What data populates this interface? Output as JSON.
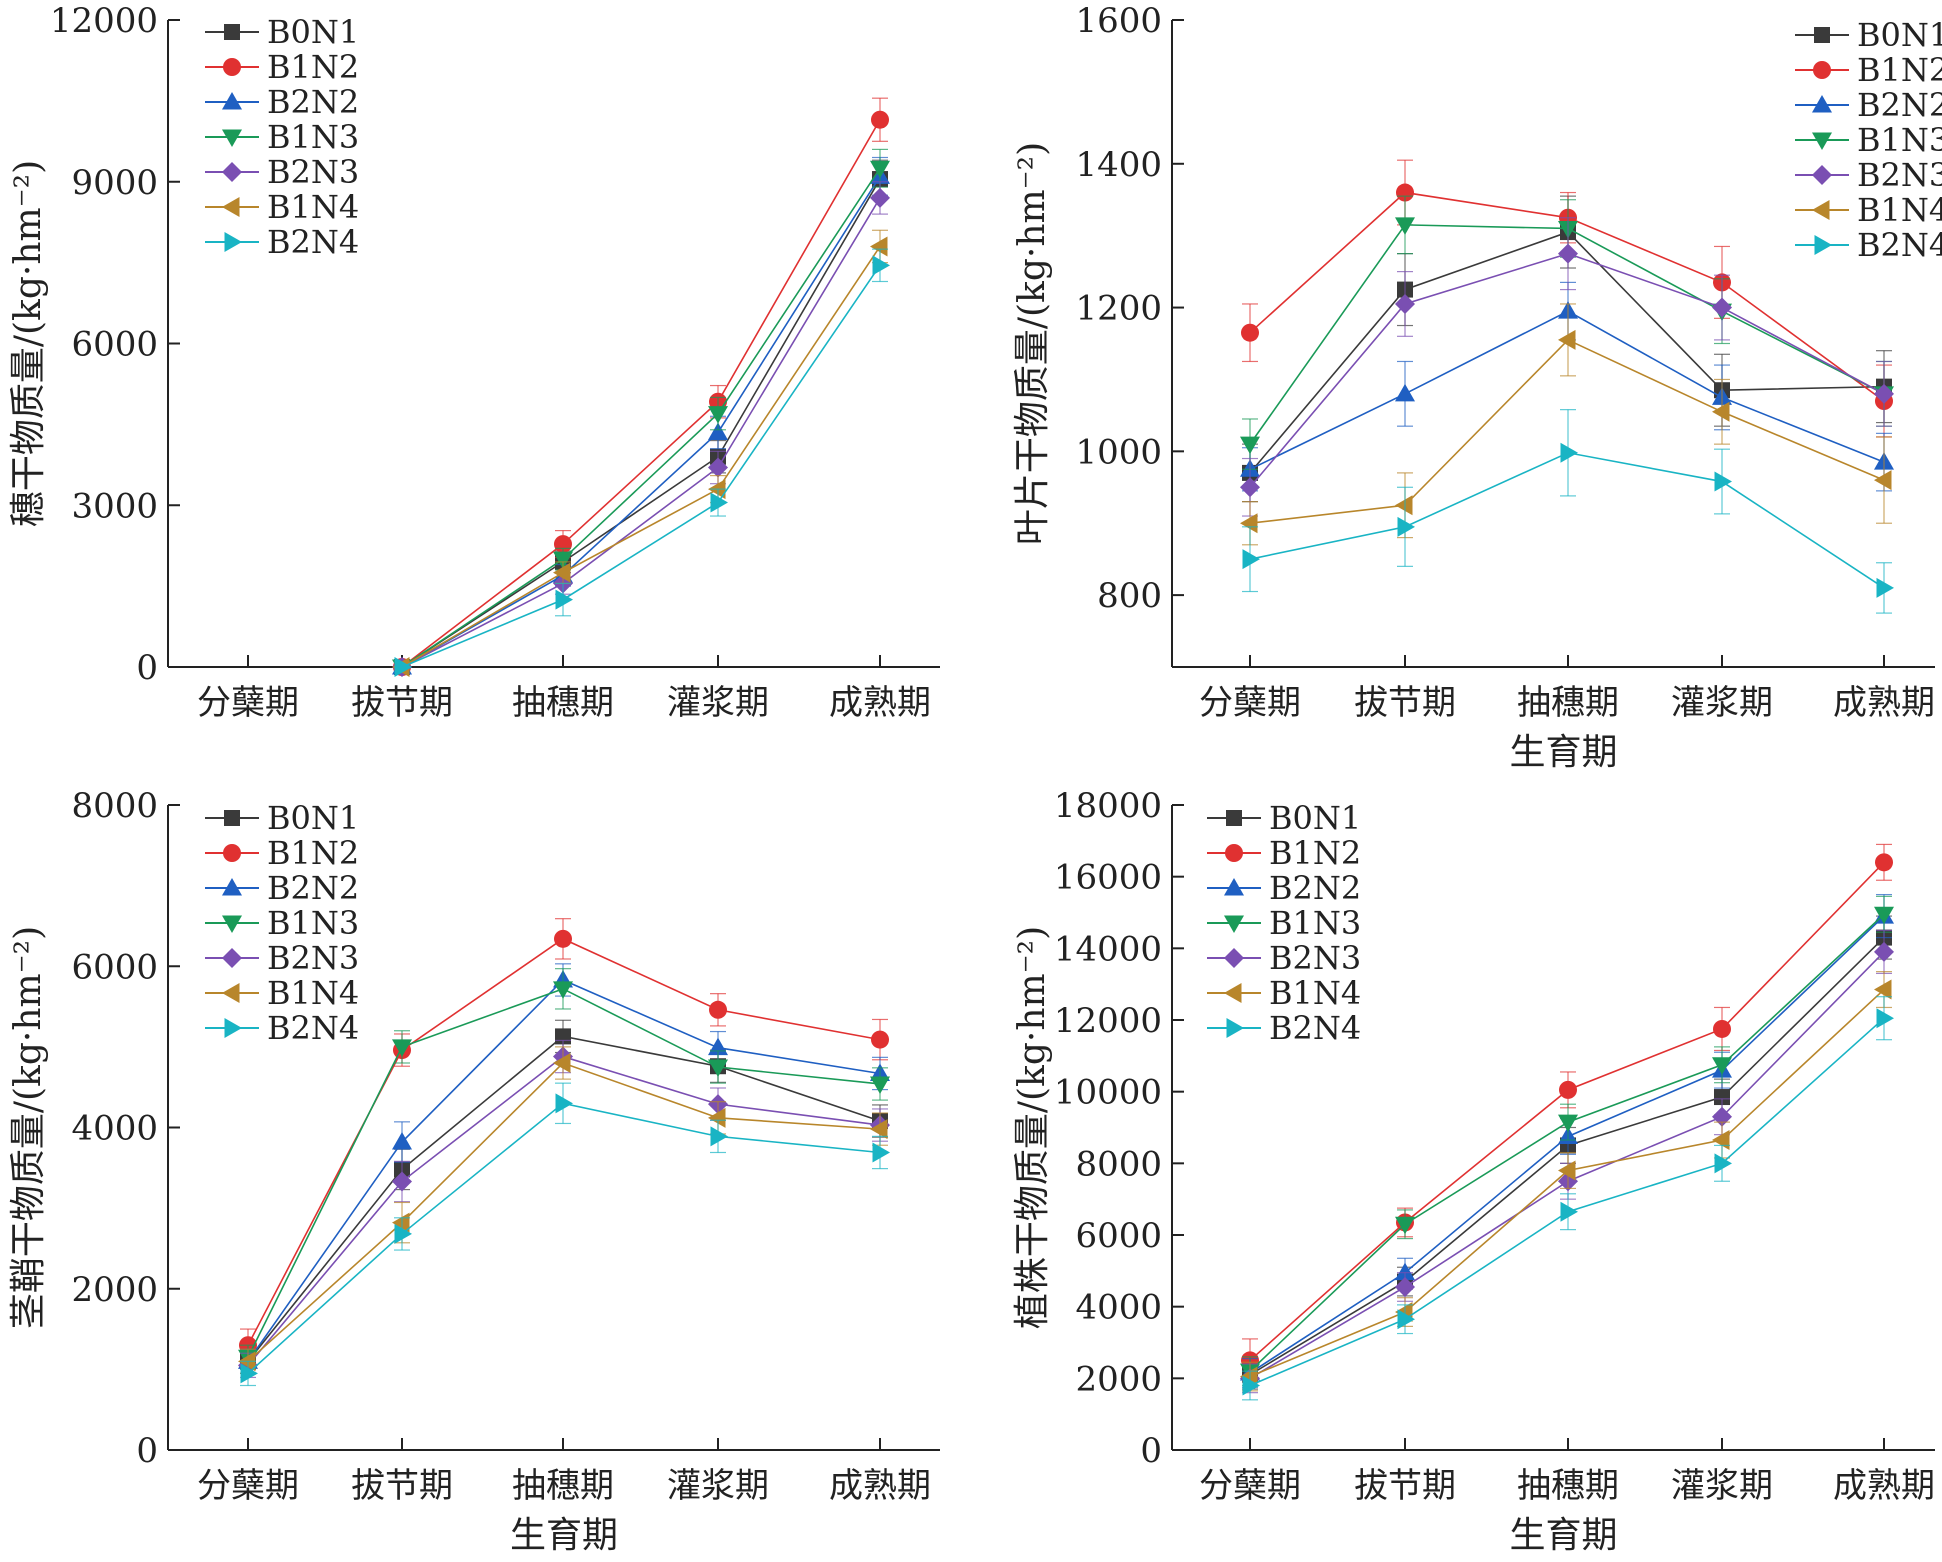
{
  "legend": [
    "B0N1",
    "B1N2",
    "B2N2",
    "B1N3",
    "B2N3",
    "B1N4",
    "B2N4"
  ],
  "colors": {
    "B0N1": "#3a3a3a",
    "B1N2": "#e03131",
    "B2N2": "#1f5fc2",
    "B1N3": "#1a9a58",
    "B2N3": "#7a4fb2",
    "B1N4": "#b8862b",
    "B2N4": "#19b4c4"
  },
  "markers": {
    "B0N1": "square",
    "B1N2": "circle",
    "B2N2": "triangle-up",
    "B1N3": "triangle-down",
    "B2N3": "diamond",
    "B1N4": "triangle-left",
    "B2N4": "triangle-right"
  },
  "chart_data": [
    {
      "type": "line",
      "categories": [
        "分蘖期",
        "拔节期",
        "抽穗期",
        "灌浆期",
        "成熟期"
      ],
      "xlabel": "",
      "ylabel": "穗干物质量/(kg·hm⁻²)",
      "ylim": [
        0,
        12000
      ],
      "yticks": [
        "0",
        "3000",
        "6000",
        "9000",
        "12000"
      ],
      "legend_position": "top-left",
      "series": [
        {
          "name": "B0N1",
          "values": [
            null,
            0,
            1950,
            3900,
            9050
          ],
          "errors": [
            null,
            0,
            200,
            300,
            350
          ]
        },
        {
          "name": "B1N2",
          "values": [
            null,
            0,
            2280,
            4920,
            10150
          ],
          "errors": [
            null,
            0,
            250,
            300,
            400
          ]
        },
        {
          "name": "B2N2",
          "values": [
            null,
            0,
            1700,
            4350,
            9100
          ],
          "errors": [
            null,
            0,
            200,
            300,
            350
          ]
        },
        {
          "name": "B1N3",
          "values": [
            null,
            0,
            2000,
            4700,
            9250
          ],
          "errors": [
            null,
            0,
            200,
            300,
            350
          ]
        },
        {
          "name": "B2N3",
          "values": [
            null,
            0,
            1550,
            3700,
            8700
          ],
          "errors": [
            null,
            0,
            200,
            300,
            300
          ]
        },
        {
          "name": "B1N4",
          "values": [
            null,
            0,
            1750,
            3300,
            7800
          ],
          "errors": [
            null,
            0,
            200,
            250,
            300
          ]
        },
        {
          "name": "B2N4",
          "values": [
            null,
            0,
            1250,
            3050,
            7450
          ],
          "errors": [
            null,
            0,
            300,
            250,
            300
          ]
        }
      ]
    },
    {
      "type": "line",
      "categories": [
        "分蘖期",
        "拔节期",
        "抽穗期",
        "灌浆期",
        "成熟期"
      ],
      "xlabel": "生育期",
      "ylabel": "叶片干物质量/(kg·hm⁻²)",
      "ylim": [
        700,
        1600
      ],
      "yticks": [
        "800",
        "1000",
        "1200",
        "1400",
        "1600"
      ],
      "legend_position": "top-right",
      "series": [
        {
          "name": "B0N1",
          "values": [
            970,
            1225,
            1305,
            1085,
            1090
          ],
          "errors": [
            40,
            50,
            50,
            50,
            50
          ]
        },
        {
          "name": "B1N2",
          "values": [
            1165,
            1360,
            1325,
            1235,
            1070
          ],
          "errors": [
            40,
            45,
            35,
            50,
            50
          ]
        },
        {
          "name": "B2N2",
          "values": [
            975,
            1080,
            1195,
            1075,
            985
          ],
          "errors": [
            30,
            45,
            40,
            45,
            40
          ]
        },
        {
          "name": "B1N3",
          "values": [
            1010,
            1315,
            1310,
            1195,
            1080
          ],
          "errors": [
            35,
            40,
            40,
            45,
            45
          ]
        },
        {
          "name": "B2N3",
          "values": [
            950,
            1205,
            1275,
            1200,
            1080
          ],
          "errors": [
            40,
            45,
            50,
            45,
            45
          ]
        },
        {
          "name": "B1N4",
          "values": [
            900,
            925,
            1155,
            1055,
            960
          ],
          "errors": [
            30,
            45,
            50,
            45,
            60
          ]
        },
        {
          "name": "B2N4",
          "values": [
            850,
            895,
            998,
            958,
            810
          ],
          "errors": [
            45,
            55,
            60,
            45,
            35
          ]
        }
      ]
    },
    {
      "type": "line",
      "categories": [
        "分蘖期",
        "拔节期",
        "抽穗期",
        "灌浆期",
        "成熟期"
      ],
      "xlabel": "生育期",
      "ylabel": "茎鞘干物质量/(kg·hm⁻²)",
      "ylim": [
        0,
        8000
      ],
      "yticks": [
        "0",
        "2000",
        "4000",
        "6000",
        "8000"
      ],
      "legend_position": "top-left",
      "series": [
        {
          "name": "B0N1",
          "values": [
            1100,
            3480,
            5130,
            4760,
            4080
          ],
          "errors": [
            150,
            250,
            200,
            200,
            200
          ]
        },
        {
          "name": "B1N2",
          "values": [
            1300,
            4960,
            6340,
            5460,
            5090
          ],
          "errors": [
            200,
            200,
            250,
            200,
            250
          ]
        },
        {
          "name": "B2N2",
          "values": [
            1100,
            3820,
            5830,
            4990,
            4670
          ],
          "errors": [
            150,
            250,
            200,
            200,
            200
          ]
        },
        {
          "name": "B1N3",
          "values": [
            1150,
            5000,
            5720,
            4750,
            4540
          ],
          "errors": [
            150,
            200,
            250,
            200,
            200
          ]
        },
        {
          "name": "B2N3",
          "values": [
            1050,
            3330,
            4880,
            4290,
            4030
          ],
          "errors": [
            150,
            250,
            200,
            200,
            200
          ]
        },
        {
          "name": "B1N4",
          "values": [
            1100,
            2820,
            4800,
            4120,
            3980
          ],
          "errors": [
            150,
            250,
            200,
            200,
            200
          ]
        },
        {
          "name": "B2N4",
          "values": [
            950,
            2680,
            4300,
            3890,
            3690
          ],
          "errors": [
            150,
            200,
            250,
            200,
            200
          ]
        }
      ]
    },
    {
      "type": "line",
      "categories": [
        "分蘖期",
        "拔节期",
        "抽穗期",
        "灌浆期",
        "成熟期"
      ],
      "xlabel": "生育期",
      "ylabel": "植株干物质量/(kg·hm⁻²)",
      "ylim": [
        0,
        18000
      ],
      "yticks": [
        "0",
        "2000",
        "4000",
        "6000",
        "8000",
        "10000",
        "12000",
        "14000",
        "16000",
        "18000"
      ],
      "legend_position": "top-left",
      "series": [
        {
          "name": "B0N1",
          "values": [
            2100,
            4700,
            8500,
            9850,
            14300
          ],
          "errors": [
            400,
            400,
            500,
            500,
            600
          ]
        },
        {
          "name": "B1N2",
          "values": [
            2500,
            6350,
            10050,
            11750,
            16400
          ],
          "errors": [
            600,
            400,
            500,
            600,
            500
          ]
        },
        {
          "name": "B2N2",
          "values": [
            2150,
            4950,
            8750,
            10600,
            14900
          ],
          "errors": [
            400,
            400,
            500,
            500,
            600
          ]
        },
        {
          "name": "B1N3",
          "values": [
            2200,
            6300,
            9150,
            10750,
            14950
          ],
          "errors": [
            400,
            400,
            500,
            500,
            500
          ]
        },
        {
          "name": "B2N3",
          "values": [
            2000,
            4550,
            7500,
            9300,
            13900
          ],
          "errors": [
            400,
            400,
            500,
            500,
            600
          ]
        },
        {
          "name": "B1N4",
          "values": [
            2050,
            3850,
            7800,
            8650,
            12850
          ],
          "errors": [
            400,
            400,
            500,
            500,
            500
          ]
        },
        {
          "name": "B2N4",
          "values": [
            1800,
            3650,
            6650,
            8000,
            12050
          ],
          "errors": [
            400,
            400,
            500,
            500,
            600
          ]
        }
      ]
    }
  ]
}
